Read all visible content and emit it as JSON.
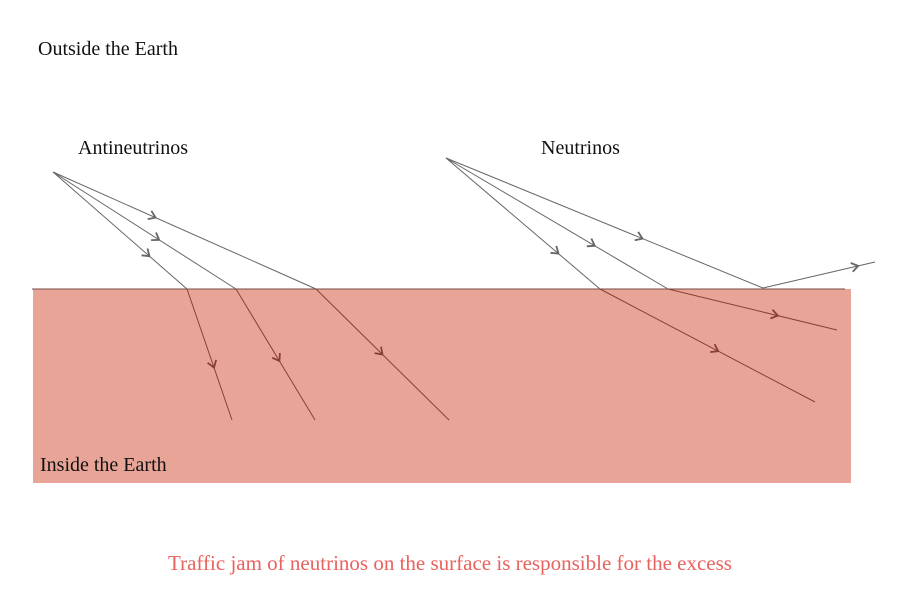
{
  "labels": {
    "outside": "Outside the Earth",
    "antineutrinos": "Antineutrinos",
    "neutrinos": "Neutrinos",
    "inside": "Inside the Earth",
    "caption": "Traffic jam of neutrinos on the surface is responsible for the excess"
  },
  "colors": {
    "earth": "#e8a597",
    "ray_outside": "#666666",
    "ray_inside": "#8a3f36",
    "surface": "#7a4a44",
    "caption": "#e8625e"
  }
}
